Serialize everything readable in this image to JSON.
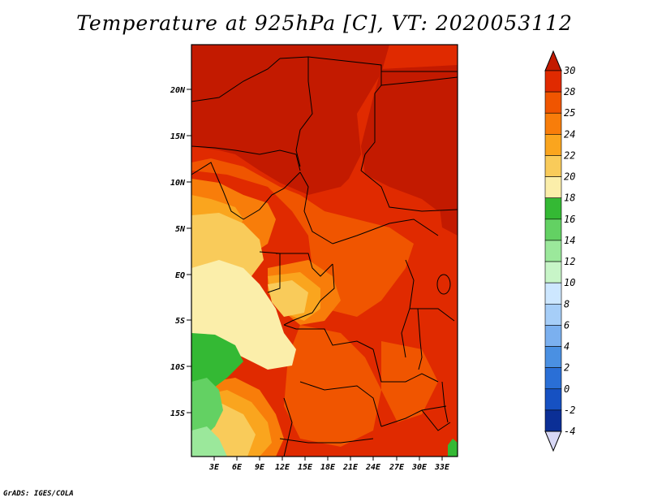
{
  "title": "Temperature at 925hPa [C], VT: 2020053112",
  "credit": "GrADS: IGES/COLA",
  "map": {
    "lat_labels": [
      "20N",
      "15N",
      "10N",
      "5N",
      "EQ",
      "5S",
      "10S",
      "15S"
    ],
    "lon_labels": [
      "3E",
      "6E",
      "9E",
      "12E",
      "15E",
      "18E",
      "21E",
      "24E",
      "27E",
      "30E",
      "33E"
    ]
  },
  "colorbar": {
    "labels": [
      "30",
      "28",
      "25",
      "24",
      "22",
      "20",
      "18",
      "16",
      "14",
      "12",
      "10",
      "8",
      "6",
      "4",
      "2",
      "0",
      "-2",
      "-4"
    ],
    "colors": [
      "#c31a00",
      "#e02a00",
      "#f05500",
      "#f87d0a",
      "#faa51e",
      "#f9cb5a",
      "#fbeeaa",
      "#34b934",
      "#63d163",
      "#9be89b",
      "#c8f5c8",
      "#cde7ff",
      "#a6cef8",
      "#7bb0ef",
      "#4a90e2",
      "#2a6fd6",
      "#1651c2",
      "#0b2f96",
      "#05136a",
      "#d8d8f5"
    ]
  }
}
